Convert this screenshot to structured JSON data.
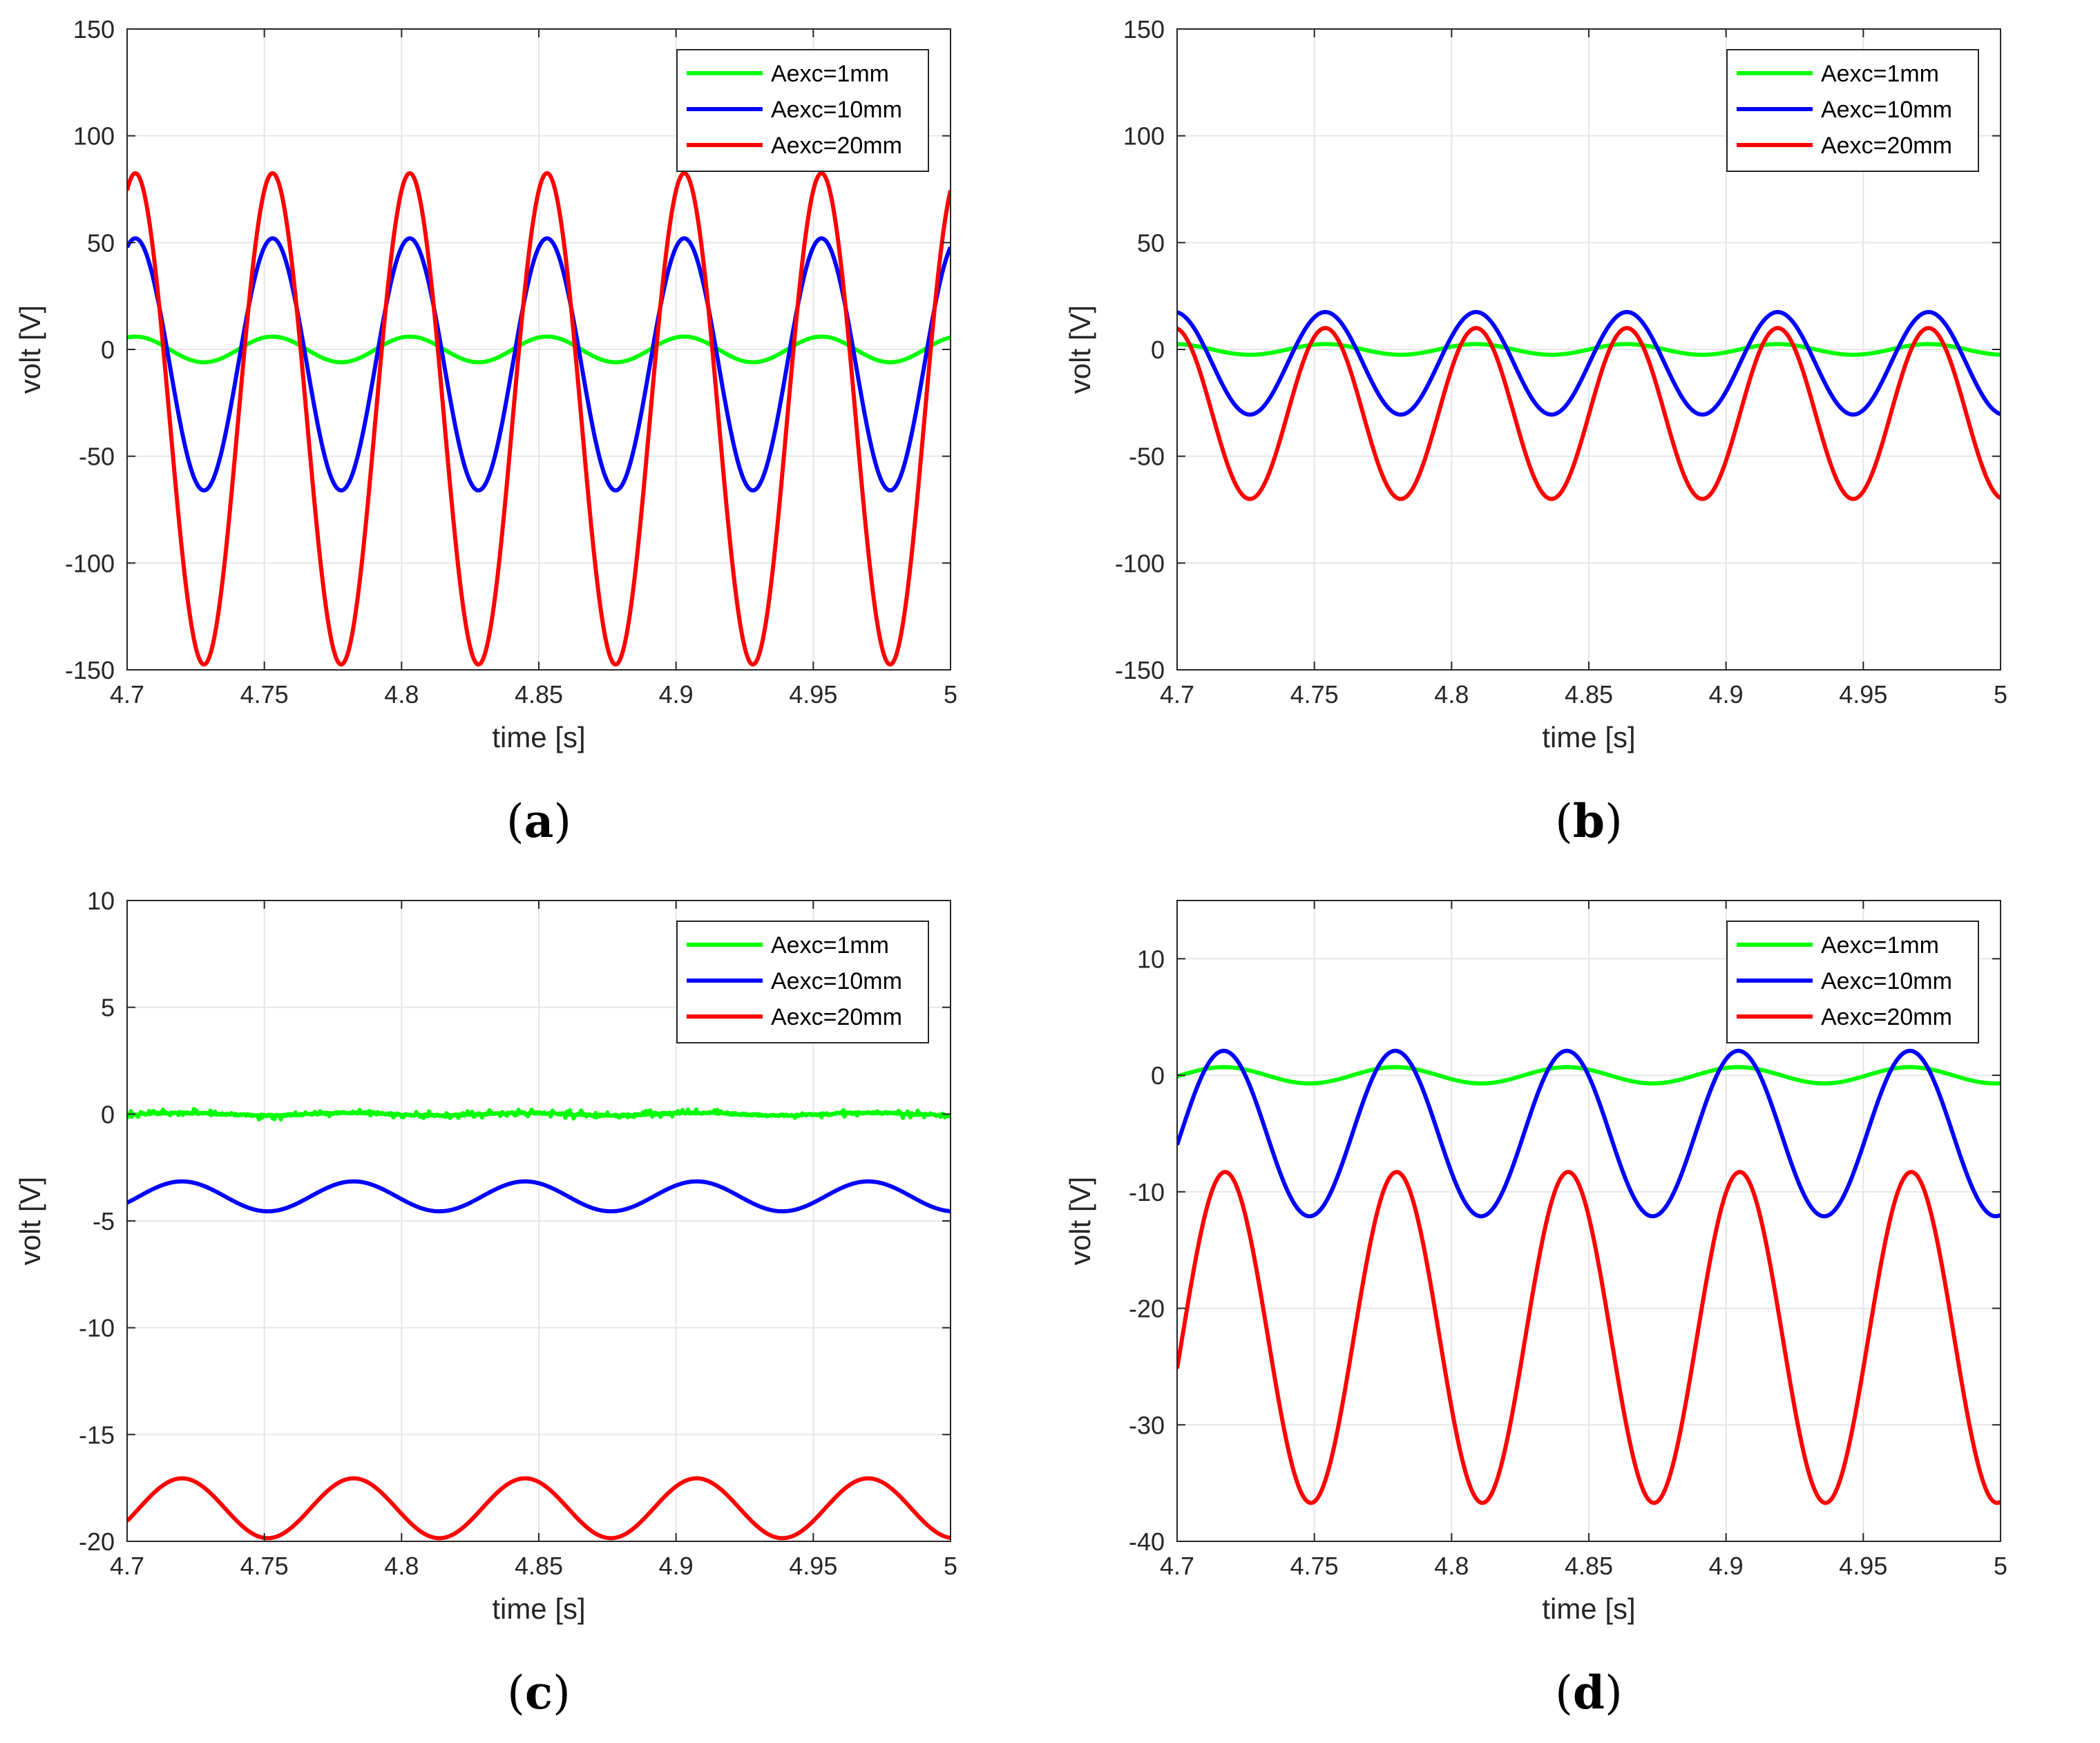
{
  "colors": {
    "green": "#00ff00",
    "blue": "#0000ff",
    "red": "#ff0000",
    "grid": "#e6e6e6",
    "axis": "#262626"
  },
  "chart_data": [
    {
      "panel_id": "a",
      "caption": "a",
      "type": "line",
      "xlabel": "time [s]",
      "ylabel": "volt [V]",
      "xlim": [
        4.7,
        5.0
      ],
      "ylim": [
        -150,
        150
      ],
      "xticks": [
        4.7,
        4.75,
        4.8,
        4.85,
        4.9,
        4.95,
        5.0
      ],
      "xtick_labels": [
        "4.7",
        "4.75",
        "4.8",
        "4.85",
        "4.9",
        "4.95",
        "5"
      ],
      "yticks": [
        -150,
        -100,
        -50,
        0,
        50,
        100,
        150
      ],
      "ytick_labels": [
        "-150",
        "-100",
        "-50",
        "0",
        "50",
        "100",
        "150"
      ],
      "grid": true,
      "legend_position": "top-right",
      "series": [
        {
          "name": "Aexc=1mm",
          "color": "green",
          "offset": 0,
          "amplitude": 6,
          "frequency_hz": 20,
          "peak_time": 4.753,
          "noise": 0
        },
        {
          "name": "Aexc=10mm",
          "color": "blue",
          "offset": -7,
          "amplitude": 59,
          "frequency_hz": 20,
          "peak_time": 4.753,
          "noise": 0
        },
        {
          "name": "Aexc=20mm",
          "color": "red",
          "offset": -32.5,
          "amplitude": 115,
          "frequency_hz": 20,
          "peak_time": 4.753,
          "noise": 0
        }
      ]
    },
    {
      "panel_id": "b",
      "caption": "b",
      "type": "line",
      "xlabel": "time [s]",
      "ylabel": "volt [V]",
      "xlim": [
        4.7,
        5.0
      ],
      "ylim": [
        -150,
        150
      ],
      "xticks": [
        4.7,
        4.75,
        4.8,
        4.85,
        4.9,
        4.95,
        5.0
      ],
      "xtick_labels": [
        "4.7",
        "4.75",
        "4.8",
        "4.85",
        "4.9",
        "4.95",
        "5"
      ],
      "yticks": [
        -150,
        -100,
        -50,
        0,
        50,
        100,
        150
      ],
      "ytick_labels": [
        "-150",
        "-100",
        "-50",
        "0",
        "50",
        "100",
        "150"
      ],
      "grid": true,
      "legend_position": "top-right",
      "series": [
        {
          "name": "Aexc=1mm",
          "color": "green",
          "offset": 0,
          "amplitude": 2.5,
          "frequency_hz": 18.2,
          "peak_time": 4.754,
          "noise": 0
        },
        {
          "name": "Aexc=10mm",
          "color": "blue",
          "offset": -6.5,
          "amplitude": 24,
          "frequency_hz": 18.2,
          "peak_time": 4.754,
          "noise": 0
        },
        {
          "name": "Aexc=20mm",
          "color": "red",
          "offset": -30,
          "amplitude": 40,
          "frequency_hz": 18.2,
          "peak_time": 4.754,
          "noise": 0
        }
      ]
    },
    {
      "panel_id": "c",
      "caption": "c",
      "type": "line",
      "xlabel": "time [s]",
      "ylabel": "volt [V]",
      "xlim": [
        4.7,
        5.0
      ],
      "ylim": [
        -20,
        10
      ],
      "xticks": [
        4.7,
        4.75,
        4.8,
        4.85,
        4.9,
        4.95,
        5.0
      ],
      "xtick_labels": [
        "4.7",
        "4.75",
        "4.8",
        "4.85",
        "4.9",
        "4.95",
        "5"
      ],
      "yticks": [
        -20,
        -15,
        -10,
        -5,
        0,
        5,
        10
      ],
      "ytick_labels": [
        "-20",
        "-15",
        "-10",
        "-5",
        "0",
        "5",
        "10"
      ],
      "grid": true,
      "legend_position": "top-right",
      "series": [
        {
          "name": "Aexc=1mm",
          "color": "green",
          "offset": 0,
          "amplitude": 0.06,
          "frequency_hz": 16,
          "peak_time": 4.72,
          "noise": 0.12
        },
        {
          "name": "Aexc=10mm",
          "color": "blue",
          "offset": -3.85,
          "amplitude": 0.7,
          "frequency_hz": 16,
          "peak_time": 4.72,
          "noise": 0
        },
        {
          "name": "Aexc=20mm",
          "color": "red",
          "offset": -18.45,
          "amplitude": 1.4,
          "frequency_hz": 16,
          "peak_time": 4.72,
          "noise": 0
        }
      ]
    },
    {
      "panel_id": "d",
      "caption": "d",
      "type": "line",
      "xlabel": "time [s]",
      "ylabel": "volt [V]",
      "xlim": [
        4.7,
        5.0
      ],
      "ylim": [
        -40,
        15
      ],
      "xticks": [
        4.7,
        4.75,
        4.8,
        4.85,
        4.9,
        4.95,
        5.0
      ],
      "xtick_labels": [
        "4.7",
        "4.75",
        "4.8",
        "4.85",
        "4.9",
        "4.95",
        "5"
      ],
      "yticks": [
        -40,
        -30,
        -20,
        -10,
        0,
        10
      ],
      "ytick_labels": [
        "-40",
        "-30",
        "-20",
        "-10",
        "0",
        "10"
      ],
      "grid": true,
      "legend_position": "top-right",
      "series": [
        {
          "name": "Aexc=1mm",
          "color": "green",
          "offset": 0,
          "amplitude": 0.7,
          "frequency_hz": 16,
          "peak_time": 4.717,
          "noise": 0
        },
        {
          "name": "Aexc=10mm",
          "color": "blue",
          "offset": -5,
          "amplitude": 7.1,
          "frequency_hz": 16,
          "peak_time": 4.717,
          "noise": 0
        },
        {
          "name": "Aexc=20mm",
          "color": "red",
          "offset": -22.5,
          "amplitude": 14.2,
          "frequency_hz": 16,
          "peak_time": 4.78,
          "noise": 0
        }
      ]
    }
  ]
}
